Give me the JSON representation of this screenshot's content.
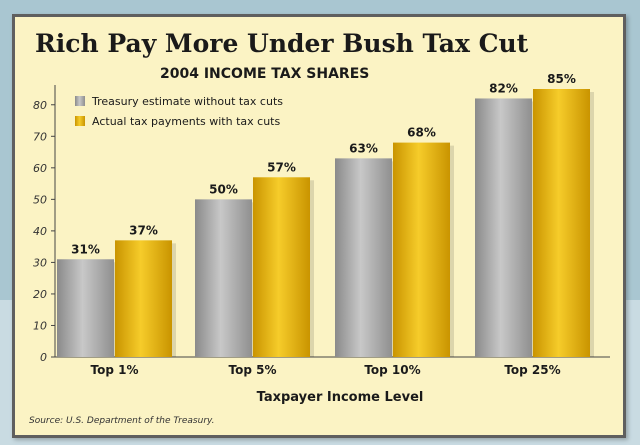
{
  "chart_data": {
    "type": "bar",
    "title": "Rich Pay More Under Bush Tax Cut",
    "subtitle": "2004 INCOME TAX SHARES",
    "xlabel": "Taxpayer Income Level",
    "ylabel": "",
    "ylim": [
      0,
      85
    ],
    "yticks": [
      0,
      10,
      20,
      30,
      40,
      50,
      60,
      70,
      80
    ],
    "categories": [
      "Top 1%",
      "Top 5%",
      "Top 10%",
      "Top 25%"
    ],
    "series": [
      {
        "name": "Treasury estimate without tax cuts",
        "values": [
          31,
          50,
          63,
          82
        ],
        "labels": [
          "31%",
          "50%",
          "63%",
          "82%"
        ],
        "color": "#a3a3a3"
      },
      {
        "name": "Actual tax payments with tax cuts",
        "values": [
          37,
          57,
          68,
          85
        ],
        "labels": [
          "37%",
          "57%",
          "68%",
          "85%"
        ],
        "color": "#e5b20b"
      }
    ],
    "grid": false,
    "legend_position": "top-left",
    "source": "Source: U.S. Department of the Treasury."
  }
}
